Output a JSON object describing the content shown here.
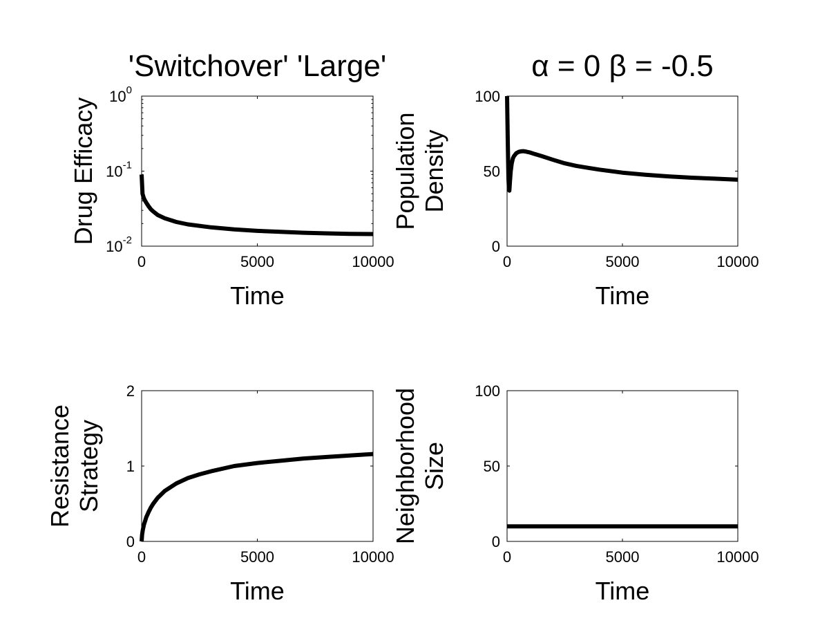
{
  "chart_data": [
    {
      "type": "line",
      "title": "'Switchover' 'Large'",
      "xlabel": "Time",
      "ylabel": [
        "Drug Efficacy"
      ],
      "xlim": [
        0,
        10000
      ],
      "ylim": [
        0.01,
        1
      ],
      "yscale": "log",
      "xticks": [
        0,
        5000,
        10000
      ],
      "xtick_labels": [
        "0",
        "5000",
        "10000"
      ],
      "yticks": [
        0.01,
        0.1,
        1
      ],
      "ytick_labels": [
        {
          "base": "10",
          "exp": "-2"
        },
        {
          "base": "10",
          "exp": "-1"
        },
        {
          "base": "10",
          "exp": "0"
        }
      ],
      "grid": false,
      "series": [
        {
          "x": [
            0,
            40,
            80,
            120,
            200,
            300,
            400,
            500,
            700,
            1000,
            1500,
            2000,
            3000,
            4000,
            5000,
            6000,
            7000,
            8000,
            9000,
            10000
          ],
          "y": [
            0.09,
            0.05,
            0.045,
            0.042,
            0.038,
            0.034,
            0.031,
            0.029,
            0.026,
            0.0235,
            0.021,
            0.0195,
            0.0178,
            0.0167,
            0.016,
            0.0155,
            0.0151,
            0.0148,
            0.0146,
            0.0145
          ]
        }
      ]
    },
    {
      "type": "line",
      "title": "α = 0 β = -0.5",
      "xlabel": "Time",
      "ylabel": [
        "Population",
        "Density"
      ],
      "xlim": [
        0,
        10000
      ],
      "ylim": [
        0,
        100
      ],
      "xticks": [
        0,
        5000,
        10000
      ],
      "xtick_labels": [
        "0",
        "5000",
        "10000"
      ],
      "yticks": [
        0,
        50,
        100
      ],
      "ytick_labels": [
        "0",
        "50",
        "100"
      ],
      "grid": false,
      "series": [
        {
          "x": [
            0,
            30,
            60,
            80,
            100,
            130,
            160,
            200,
            250,
            300,
            400,
            500,
            600,
            700,
            800,
            1000,
            1200,
            1500,
            2000,
            2500,
            3000,
            3500,
            4000,
            5000,
            6000,
            7000,
            8000,
            9000,
            10000
          ],
          "y": [
            100,
            70,
            45,
            38,
            37,
            44,
            50,
            55,
            58.5,
            60,
            62,
            62.8,
            63.2,
            63.3,
            63.1,
            62.4,
            61.4,
            60,
            57.5,
            55.2,
            53.5,
            52.2,
            51,
            49,
            47.6,
            46.5,
            45.6,
            45,
            44.3
          ]
        }
      ]
    },
    {
      "type": "line",
      "title": "",
      "xlabel": "Time",
      "ylabel": [
        "Resistance",
        "Strategy"
      ],
      "xlim": [
        0,
        10000
      ],
      "ylim": [
        0,
        2
      ],
      "xticks": [
        0,
        5000,
        10000
      ],
      "xtick_labels": [
        "0",
        "5000",
        "10000"
      ],
      "yticks": [
        0,
        1,
        2
      ],
      "ytick_labels": [
        "0",
        "1",
        "2"
      ],
      "grid": false,
      "series": [
        {
          "x": [
            0,
            20,
            50,
            100,
            150,
            200,
            300,
            400,
            500,
            700,
            1000,
            1500,
            2000,
            2500,
            3000,
            4000,
            5000,
            6000,
            7000,
            8000,
            9000,
            10000
          ],
          "y": [
            0,
            0.09,
            0.15,
            0.22,
            0.27,
            0.32,
            0.39,
            0.45,
            0.5,
            0.58,
            0.67,
            0.77,
            0.84,
            0.89,
            0.93,
            1.0,
            1.04,
            1.07,
            1.1,
            1.12,
            1.14,
            1.16
          ]
        }
      ]
    },
    {
      "type": "line",
      "title": "",
      "xlabel": "Time",
      "ylabel": [
        "Neighborhood",
        "Size"
      ],
      "xlim": [
        0,
        10000
      ],
      "ylim": [
        0,
        100
      ],
      "xticks": [
        0,
        5000,
        10000
      ],
      "xtick_labels": [
        "0",
        "5000",
        "10000"
      ],
      "yticks": [
        0,
        50,
        100
      ],
      "ytick_labels": [
        "0",
        "50",
        "100"
      ],
      "grid": false,
      "series": [
        {
          "x": [
            0,
            10000
          ],
          "y": [
            10,
            10
          ]
        }
      ]
    }
  ]
}
